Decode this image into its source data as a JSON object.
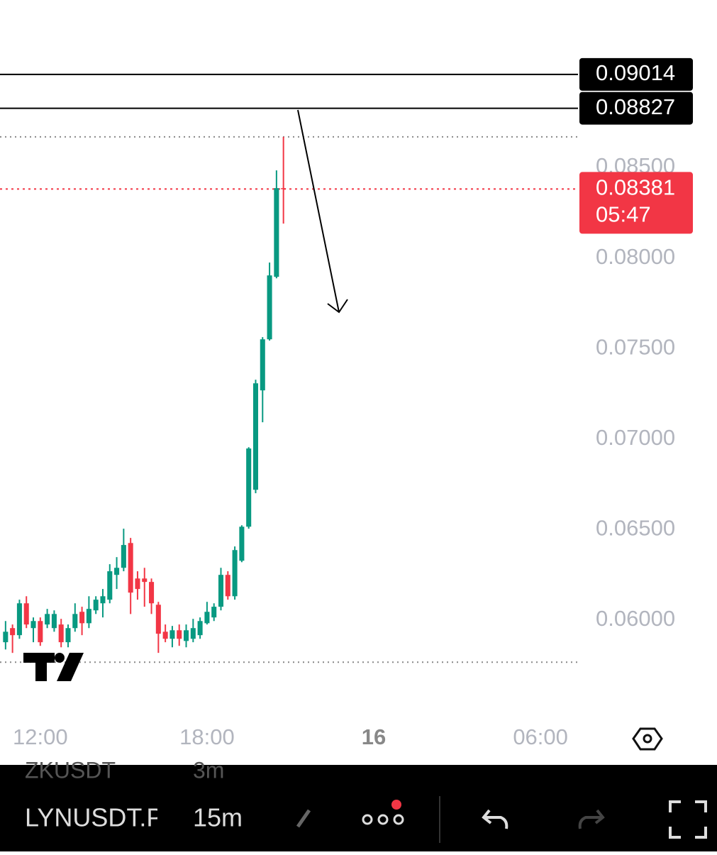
{
  "chart_data": {
    "type": "candlestick",
    "x": [
      10.75,
      11,
      11.25,
      11.5,
      11.75,
      12,
      12.25,
      12.5,
      12.75,
      13,
      13.25,
      13.5,
      13.75,
      14,
      14.25,
      14.5,
      14.75,
      15,
      15.25,
      15.5,
      15.75,
      16,
      16.25,
      16.5,
      16.75,
      17,
      17.25,
      17.5,
      17.75,
      18,
      18.25,
      18.5,
      18.75,
      19,
      19.25,
      19.5,
      19.75,
      20,
      20.25,
      20.5,
      20.75
    ],
    "open": [
      0.05878,
      0.05956,
      0.05917,
      0.06093,
      0.05956,
      0.05995,
      0.05976,
      0.05956,
      0.05976,
      0.05878,
      0.05956,
      0.06046,
      0.05983,
      0.06054,
      0.06093,
      0.06113,
      0.0625,
      0.06289,
      0.06426,
      0.0623,
      0.0623,
      0.06211,
      0.06085,
      0.05936,
      0.05897,
      0.05944,
      0.05885,
      0.05897,
      0.05917,
      0.05983,
      0.06015,
      0.06074,
      0.0625,
      0.06132,
      0.06328,
      0.06516,
      0.0672,
      0.07269,
      0.07551,
      0.07896,
      0.08386
    ],
    "high": [
      0.05995,
      0.05976,
      0.06113,
      0.06132,
      0.06015,
      0.06015,
      0.06062,
      0.06054,
      0.06007,
      0.05976,
      0.06093,
      0.06074,
      0.06132,
      0.06132,
      0.06172,
      0.06309,
      0.06348,
      0.06505,
      0.06454,
      0.0627,
      0.06289,
      0.0623,
      0.06101,
      0.05976,
      0.05968,
      0.05976,
      0.05976,
      0.06007,
      0.06015,
      0.06101,
      0.06093,
      0.06289,
      0.0627,
      0.06407,
      0.06524,
      0.06955,
      0.07328,
      0.07563,
      0.07975,
      0.08484,
      0.08669
    ],
    "low": [
      0.05838,
      0.05819,
      0.05897,
      0.05956,
      0.05878,
      0.05858,
      0.05956,
      0.05936,
      0.0585,
      0.0585,
      0.05936,
      0.05917,
      0.05956,
      0.06034,
      0.06015,
      0.06093,
      0.06172,
      0.0627,
      0.06034,
      0.06113,
      0.06074,
      0.06034,
      0.05819,
      0.05878,
      0.0585,
      0.05858,
      0.0585,
      0.05878,
      0.05897,
      0.05976,
      0.05995,
      0.06054,
      0.06113,
      0.06113,
      0.0632,
      0.06505,
      0.06701,
      0.07093,
      0.07544,
      0.07888,
      0.0819
    ],
    "close": [
      0.05936,
      0.05917,
      0.06093,
      0.05976,
      0.05995,
      0.05878,
      0.06034,
      0.06034,
      0.05878,
      0.05956,
      0.06034,
      0.05983,
      0.06062,
      0.06113,
      0.06132,
      0.0627,
      0.06289,
      0.06415,
      0.06152,
      0.06172,
      0.06211,
      0.06093,
      0.05925,
      0.05897,
      0.05944,
      0.05897,
      0.05944,
      0.05956,
      0.05995,
      0.06046,
      0.06074,
      0.0625,
      0.06132,
      0.06387,
      0.06516,
      0.06948,
      0.07308,
      0.07551,
      0.07904,
      0.08386,
      0.08381
    ],
    "up_color": "#089981",
    "down_color": "#f23645",
    "xlim": [
      10.55,
      31.35
    ],
    "xticks": [
      {
        "value": 12,
        "label": "12:00"
      },
      {
        "value": 18,
        "label": "18:00"
      },
      {
        "value": 24,
        "label": "16"
      },
      {
        "value": 30,
        "label": "06:00"
      }
    ],
    "ylim": [
      0.05467,
      0.09425
    ],
    "yticks": [
      {
        "value": 0.06,
        "label": "0.06000"
      },
      {
        "value": 0.065,
        "label": "0.06500"
      },
      {
        "value": 0.07,
        "label": "0.07000"
      },
      {
        "value": 0.075,
        "label": "0.07500"
      },
      {
        "value": 0.08,
        "label": "0.08000"
      },
      {
        "value": 0.085,
        "label": "0.08500"
      }
    ],
    "horizontal_lines": [
      0.09014,
      0.08827
    ],
    "price_line": {
      "value": 0.08381,
      "countdown": "05:47"
    },
    "range_lines": [
      0.08669,
      0.05768
    ]
  },
  "toolbar": {
    "previous_symbol": "ZKUSDT",
    "previous_interval": "3m",
    "symbol": "LYNUSDT.P",
    "interval": "15m"
  }
}
